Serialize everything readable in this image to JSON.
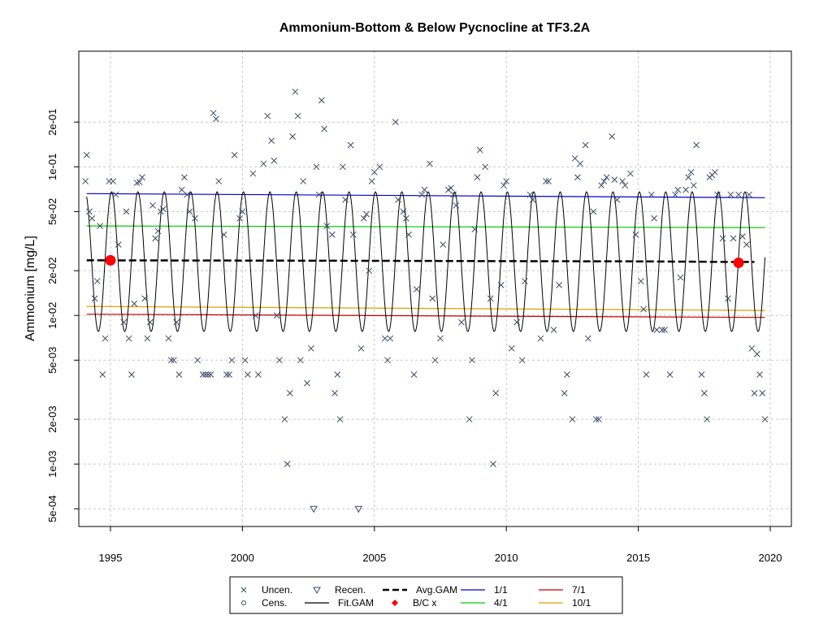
{
  "chart_data": {
    "type": "scatter",
    "title": "Ammonium-Bottom & Below Pycnocline at TF3.2A",
    "xlabel": "",
    "ylabel": "Ammonium [mg/L]",
    "y_scale": "log",
    "xlim": [
      1993.8,
      2020.8
    ],
    "ylim": [
      0.00038,
      0.6
    ],
    "x_ticks": [
      1995,
      2000,
      2005,
      2010,
      2015,
      2020
    ],
    "y_ticks": [
      0.0005,
      0.001,
      0.002,
      0.005,
      0.01,
      0.02,
      0.05,
      0.1,
      0.2
    ],
    "y_tick_labels": [
      "5e-04",
      "1e-03",
      "2e-03",
      "5e-03",
      "1e-02",
      "2e-02",
      "5e-02",
      "1e-01",
      "2e-01"
    ],
    "grid": true,
    "legend_position": "bottom",
    "colors": {
      "points": "#3a4a66",
      "avg_gam": "#000000",
      "fit_gam": "#000000",
      "bc": "#ff0000",
      "jan": "#0000cc",
      "apr": "#00cc00",
      "jul": "#cc0000",
      "oct": "#e0a000",
      "grid": "#c8c8c8"
    },
    "legend": [
      {
        "key": "uncen",
        "label": "Uncen.",
        "symbol": "x"
      },
      {
        "key": "recen",
        "label": "Recen.",
        "symbol": "triangle-down"
      },
      {
        "key": "avg",
        "label": "Avg.GAM",
        "symbol": "dashed-line"
      },
      {
        "key": "jan",
        "label": "1/1",
        "symbol": "line"
      },
      {
        "key": "jul",
        "label": "7/1",
        "symbol": "line"
      },
      {
        "key": "cens",
        "label": "Cens.",
        "symbol": "circle"
      },
      {
        "key": "fit",
        "label": "Fit.GAM",
        "symbol": "line"
      },
      {
        "key": "bc",
        "label": "B/C x",
        "symbol": "diamond"
      },
      {
        "key": "apr",
        "label": "4/1",
        "symbol": "line"
      },
      {
        "key": "oct",
        "label": "10/1",
        "symbol": "line"
      }
    ],
    "series": [
      {
        "name": "Uncen.",
        "points": [
          [
            1994.05,
            0.08
          ],
          [
            1994.1,
            0.12
          ],
          [
            1994.2,
            0.05
          ],
          [
            1994.3,
            0.045
          ],
          [
            1994.4,
            0.013
          ],
          [
            1994.5,
            0.017
          ],
          [
            1994.6,
            0.04
          ],
          [
            1994.7,
            0.004
          ],
          [
            1994.8,
            0.007
          ],
          [
            1994.95,
            0.08
          ],
          [
            1995.1,
            0.08
          ],
          [
            1995.2,
            0.065
          ],
          [
            1995.3,
            0.03
          ],
          [
            1995.5,
            0.009
          ],
          [
            1995.6,
            0.05
          ],
          [
            1995.7,
            0.007
          ],
          [
            1995.8,
            0.004
          ],
          [
            1995.9,
            0.012
          ],
          [
            1996.0,
            0.078
          ],
          [
            1996.1,
            0.079
          ],
          [
            1996.2,
            0.085
          ],
          [
            1996.3,
            0.013
          ],
          [
            1996.4,
            0.007
          ],
          [
            1996.5,
            0.009
          ],
          [
            1996.6,
            0.055
          ],
          [
            1996.7,
            0.033
          ],
          [
            1996.8,
            0.037
          ],
          [
            1996.9,
            0.05
          ],
          [
            1997.0,
            0.052
          ],
          [
            1997.2,
            0.007
          ],
          [
            1997.3,
            0.005
          ],
          [
            1997.4,
            0.005
          ],
          [
            1997.5,
            0.009
          ],
          [
            1997.6,
            0.004
          ],
          [
            1997.7,
            0.07
          ],
          [
            1997.8,
            0.085
          ],
          [
            1997.9,
            0.065
          ],
          [
            1998.0,
            0.05
          ],
          [
            1998.2,
            0.045
          ],
          [
            1998.3,
            0.005
          ],
          [
            1998.5,
            0.004
          ],
          [
            1998.6,
            0.004
          ],
          [
            1998.7,
            0.004
          ],
          [
            1998.8,
            0.004
          ],
          [
            1998.9,
            0.23
          ],
          [
            1999.0,
            0.21
          ],
          [
            1999.1,
            0.08
          ],
          [
            1999.3,
            0.035
          ],
          [
            1999.4,
            0.004
          ],
          [
            1999.5,
            0.004
          ],
          [
            1999.6,
            0.005
          ],
          [
            1999.7,
            0.12
          ],
          [
            1999.9,
            0.045
          ],
          [
            2000.0,
            0.05
          ],
          [
            2000.1,
            0.005
          ],
          [
            2000.2,
            0.004
          ],
          [
            2000.4,
            0.09
          ],
          [
            2000.5,
            0.01
          ],
          [
            2000.6,
            0.004
          ],
          [
            2000.8,
            0.105
          ],
          [
            2000.95,
            0.22
          ],
          [
            2001.1,
            0.15
          ],
          [
            2001.2,
            0.11
          ],
          [
            2001.3,
            0.01
          ],
          [
            2001.4,
            0.005
          ],
          [
            2001.6,
            0.002
          ],
          [
            2001.7,
            0.001
          ],
          [
            2001.8,
            0.003
          ],
          [
            2001.9,
            0.16
          ],
          [
            2002.0,
            0.32
          ],
          [
            2002.1,
            0.22
          ],
          [
            2002.2,
            0.005
          ],
          [
            2002.3,
            0.08
          ],
          [
            2002.45,
            0.0035
          ],
          [
            2002.6,
            0.006
          ],
          [
            2002.8,
            0.1
          ],
          [
            2002.9,
            0.065
          ],
          [
            2003.0,
            0.28
          ],
          [
            2003.1,
            0.18
          ],
          [
            2003.2,
            0.04
          ],
          [
            2003.4,
            0.035
          ],
          [
            2003.5,
            0.003
          ],
          [
            2003.6,
            0.004
          ],
          [
            2003.7,
            0.002
          ],
          [
            2003.8,
            0.1
          ],
          [
            2003.9,
            0.06
          ],
          [
            2004.1,
            0.14
          ],
          [
            2004.2,
            0.035
          ],
          [
            2004.5,
            0.006
          ],
          [
            2004.6,
            0.045
          ],
          [
            2004.7,
            0.048
          ],
          [
            2004.8,
            0.02
          ],
          [
            2004.9,
            0.08
          ],
          [
            2005.0,
            0.092
          ],
          [
            2005.2,
            0.1
          ],
          [
            2005.4,
            0.007
          ],
          [
            2005.5,
            0.005
          ],
          [
            2005.6,
            0.007
          ],
          [
            2005.8,
            0.2
          ],
          [
            2005.9,
            0.06
          ],
          [
            2006.1,
            0.05
          ],
          [
            2006.2,
            0.045
          ],
          [
            2006.3,
            0.035
          ],
          [
            2006.5,
            0.004
          ],
          [
            2006.6,
            0.015
          ],
          [
            2006.8,
            0.065
          ],
          [
            2006.9,
            0.07
          ],
          [
            2007.1,
            0.105
          ],
          [
            2007.2,
            0.013
          ],
          [
            2007.3,
            0.005
          ],
          [
            2007.5,
            0.007
          ],
          [
            2007.6,
            0.03
          ],
          [
            2007.8,
            0.07
          ],
          [
            2007.9,
            0.072
          ],
          [
            2008.0,
            0.065
          ],
          [
            2008.1,
            0.055
          ],
          [
            2008.3,
            0.009
          ],
          [
            2008.6,
            0.002
          ],
          [
            2008.7,
            0.005
          ],
          [
            2008.8,
            0.038
          ],
          [
            2008.9,
            0.085
          ],
          [
            2009.0,
            0.13
          ],
          [
            2009.2,
            0.1
          ],
          [
            2009.4,
            0.013
          ],
          [
            2009.5,
            0.001
          ],
          [
            2009.6,
            0.003
          ],
          [
            2009.8,
            0.016
          ],
          [
            2009.9,
            0.075
          ],
          [
            2010.0,
            0.08
          ],
          [
            2010.2,
            0.006
          ],
          [
            2010.4,
            0.009
          ],
          [
            2010.6,
            0.005
          ],
          [
            2010.7,
            0.017
          ],
          [
            2010.9,
            0.065
          ],
          [
            2011.0,
            0.06
          ],
          [
            2011.3,
            0.007
          ],
          [
            2011.5,
            0.08
          ],
          [
            2011.6,
            0.08
          ],
          [
            2011.8,
            0.008
          ],
          [
            2012.0,
            0.016
          ],
          [
            2012.2,
            0.003
          ],
          [
            2012.3,
            0.004
          ],
          [
            2012.5,
            0.002
          ],
          [
            2012.6,
            0.114
          ],
          [
            2012.7,
            0.085
          ],
          [
            2012.8,
            0.105
          ],
          [
            2013.0,
            0.14
          ],
          [
            2013.1,
            0.007
          ],
          [
            2013.3,
            0.05
          ],
          [
            2013.4,
            0.002
          ],
          [
            2013.5,
            0.002
          ],
          [
            2013.6,
            0.075
          ],
          [
            2013.7,
            0.08
          ],
          [
            2013.8,
            0.085
          ],
          [
            2014.0,
            0.16
          ],
          [
            2014.1,
            0.082
          ],
          [
            2014.2,
            0.06
          ],
          [
            2014.4,
            0.08
          ],
          [
            2014.5,
            0.075
          ],
          [
            2014.7,
            0.09
          ],
          [
            2014.9,
            0.035
          ],
          [
            2015.1,
            0.017
          ],
          [
            2015.2,
            0.011
          ],
          [
            2015.3,
            0.004
          ],
          [
            2015.5,
            0.065
          ],
          [
            2015.6,
            0.045
          ],
          [
            2015.7,
            0.008
          ],
          [
            2015.9,
            0.008
          ],
          [
            2016.0,
            0.008
          ],
          [
            2016.2,
            0.004
          ],
          [
            2016.4,
            0.065
          ],
          [
            2016.5,
            0.07
          ],
          [
            2016.6,
            0.018
          ],
          [
            2016.8,
            0.07
          ],
          [
            2016.9,
            0.085
          ],
          [
            2017.0,
            0.092
          ],
          [
            2017.1,
            0.075
          ],
          [
            2017.2,
            0.14
          ],
          [
            2017.4,
            0.004
          ],
          [
            2017.5,
            0.003
          ],
          [
            2017.6,
            0.002
          ],
          [
            2017.7,
            0.085
          ],
          [
            2017.8,
            0.088
          ],
          [
            2017.9,
            0.092
          ],
          [
            2018.0,
            0.065
          ],
          [
            2018.2,
            0.033
          ],
          [
            2018.4,
            0.013
          ],
          [
            2018.5,
            0.065
          ],
          [
            2018.6,
            0.033
          ],
          [
            2018.8,
            0.065
          ],
          [
            2018.95,
            0.034
          ],
          [
            2019.1,
            0.03
          ],
          [
            2019.2,
            0.065
          ],
          [
            2019.3,
            0.006
          ],
          [
            2019.4,
            0.003
          ],
          [
            2019.5,
            0.0055
          ],
          [
            2019.6,
            0.004
          ],
          [
            2019.7,
            0.003
          ],
          [
            2019.8,
            0.002
          ]
        ]
      },
      {
        "name": "Recen.",
        "points": [
          [
            2002.7,
            0.0005
          ],
          [
            2004.4,
            0.0005
          ]
        ]
      },
      {
        "name": "Fit.GAM",
        "model": {
          "mean": 0.023,
          "amplitude_log10": 0.47,
          "peak_offset": 0.04,
          "x_start": 1994.1,
          "x_end": 2019.8
        }
      },
      {
        "name": "Avg.GAM",
        "values": [
          [
            1994.1,
            0.0235
          ],
          [
            2000,
            0.0234
          ],
          [
            2005,
            0.0233
          ],
          [
            2010,
            0.0232
          ],
          [
            2015,
            0.0231
          ],
          [
            2018.8,
            0.0229
          ],
          [
            2019.4,
            0.0229
          ]
        ]
      },
      {
        "name": "1/1",
        "values": [
          [
            1994.1,
            0.066
          ],
          [
            2019.8,
            0.062
          ]
        ]
      },
      {
        "name": "4/1",
        "values": [
          [
            1994.1,
            0.04
          ],
          [
            2019.8,
            0.039
          ]
        ]
      },
      {
        "name": "7/1",
        "values": [
          [
            1994.1,
            0.0102
          ],
          [
            2019.8,
            0.0097
          ]
        ]
      },
      {
        "name": "10/1",
        "values": [
          [
            1994.1,
            0.0115
          ],
          [
            2019.8,
            0.0108
          ]
        ]
      },
      {
        "name": "B/C x",
        "points": [
          [
            1995.0,
            0.0235
          ],
          [
            2018.8,
            0.0226
          ]
        ]
      }
    ]
  }
}
